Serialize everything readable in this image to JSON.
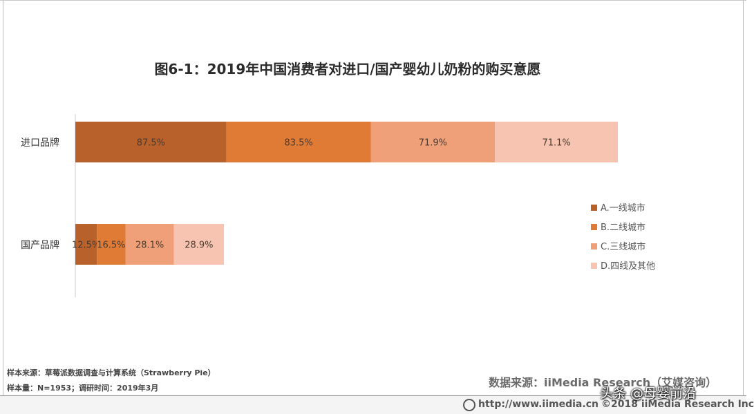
{
  "chart_data": {
    "type": "bar",
    "orientation": "horizontal",
    "stacked": true,
    "title": "图6-1：2019年中国消费者对进口/国产婴幼儿奶粉的购买意愿",
    "categories": [
      "进口品牌",
      "国产品牌"
    ],
    "series": [
      {
        "name": "A.一线城市",
        "values": [
          87.5,
          12.5
        ],
        "labels": [
          "87.5%",
          "12.5%"
        ],
        "color": "#b8612a"
      },
      {
        "name": "B.二线城市",
        "values": [
          83.5,
          16.5
        ],
        "labels": [
          "83.5%",
          "16.5%"
        ],
        "color": "#e07b35"
      },
      {
        "name": "C.三线城市",
        "values": [
          71.9,
          28.1
        ],
        "labels": [
          "71.9%",
          "28.1%"
        ],
        "color": "#f0a078"
      },
      {
        "name": "D.四线及其他",
        "values": [
          71.1,
          28.9
        ],
        "labels": [
          "71.1%",
          "28.9%"
        ],
        "color": "#f6c4b0"
      }
    ],
    "grid": false,
    "legend_position": "right"
  },
  "footer": {
    "sample_source": "样本来源：草莓派数据调查与计算系统（Strawberry   Pie）",
    "sample_size": "样本量：N=1953；调研时间：2019年3月",
    "data_source": "数据来源：iiMedia Research（艾媒咨询）",
    "url": "http://www.iimedia.cn",
    "copyright": "©2018  iiMedia Research Inc"
  },
  "watermark": "头条 @母婴前沿"
}
